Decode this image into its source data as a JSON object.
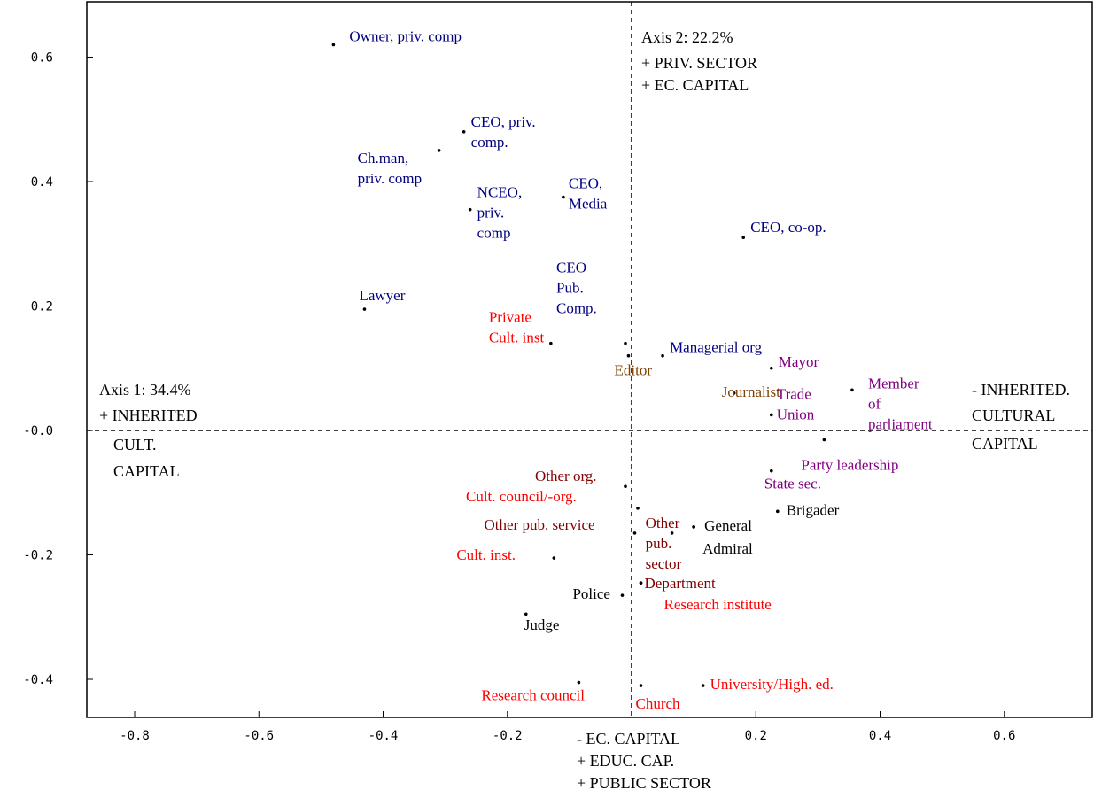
{
  "chart_data": {
    "type": "scatter",
    "xlim": [
      -0.88,
      0.75
    ],
    "ylim": [
      -0.46,
      0.67
    ],
    "x_ticks": [
      "-0.8",
      "-0.6",
      "-0.4",
      "-0.2",
      "0.2",
      "0.4",
      "0.6"
    ],
    "y_ticks": [
      "0.6",
      "0.4",
      "0.2",
      "-0.0",
      "-0.2",
      "-0.4"
    ],
    "axis_annotations": {
      "axis2_title": "Axis 2: 22.2%",
      "top_lines": [
        "+ PRIV. SECTOR",
        "+ EC. CAPITAL"
      ],
      "axis1_title": "Axis 1: 34.4%",
      "left_lines": [
        "+ INHERITED",
        "CULT.",
        "CAPITAL"
      ],
      "right_lines": [
        "- INHERITED.",
        "CULTURAL",
        "CAPITAL"
      ],
      "bottom_lines": [
        "- EC. CAPITAL",
        "+ EDUC. CAP.",
        "+ PUBLIC SECTOR"
      ]
    },
    "colors": {
      "private": "#000080",
      "culture": "#ff0000",
      "public": "#800000",
      "politics": "#800080",
      "media": "#804000",
      "state": "#000000"
    },
    "points": [
      {
        "label": [
          "Owner, priv. comp"
        ],
        "x": -0.48,
        "y": 0.62,
        "color": "#000080"
      },
      {
        "label": [
          "CEO, priv.",
          "comp."
        ],
        "x": -0.27,
        "y": 0.48,
        "color": "#000080"
      },
      {
        "label": [
          "Ch.man,",
          "priv. comp"
        ],
        "x": -0.31,
        "y": 0.45,
        "color": "#000080"
      },
      {
        "label": [
          "NCEO,",
          "priv.",
          "comp"
        ],
        "x": -0.26,
        "y": 0.355,
        "color": "#000080"
      },
      {
        "label": [
          "CEO,",
          "Media"
        ],
        "x": -0.11,
        "y": 0.375,
        "color": "#000080"
      },
      {
        "label": [
          "CEO, co-op."
        ],
        "x": 0.18,
        "y": 0.31,
        "color": "#000080"
      },
      {
        "label": [
          "Lawyer"
        ],
        "x": -0.43,
        "y": 0.195,
        "color": "#000080"
      },
      {
        "label": [
          "CEO",
          "Pub.",
          "Comp."
        ],
        "x": -0.01,
        "y": 0.14,
        "color": "#000080"
      },
      {
        "label": [
          "Managerial org"
        ],
        "x": 0.05,
        "y": 0.12,
        "color": "#000080"
      },
      {
        "label": [
          "Private",
          "Cult. inst"
        ],
        "x": -0.13,
        "y": 0.14,
        "color": "#ff0000"
      },
      {
        "label": [
          "Editor"
        ],
        "x": -0.005,
        "y": 0.12,
        "color": "#804000"
      },
      {
        "label": [
          "Journalist"
        ],
        "x": 0.165,
        "y": 0.06,
        "color": "#804000"
      },
      {
        "label": [
          "Mayor"
        ],
        "x": 0.225,
        "y": 0.1,
        "color": "#800080"
      },
      {
        "label": [
          "Trade",
          "Union"
        ],
        "x": 0.225,
        "y": 0.025,
        "color": "#800080"
      },
      {
        "label": [
          "Member",
          "of",
          "parliament"
        ],
        "x": 0.355,
        "y": 0.065,
        "color": "#800080"
      },
      {
        "label": [
          "Party leadership"
        ],
        "x": 0.31,
        "y": -0.015,
        "color": "#800080"
      },
      {
        "label": [
          "State sec."
        ],
        "x": 0.225,
        "y": -0.065,
        "color": "#800080"
      },
      {
        "label": [
          "Other org."
        ],
        "x": -0.01,
        "y": -0.09,
        "color": "#800000"
      },
      {
        "label": [
          "Cult. council/-org."
        ],
        "x": 0.01,
        "y": -0.125,
        "color": "#ff0000"
      },
      {
        "label": [
          "Other pub. service"
        ],
        "x": 0.005,
        "y": -0.165,
        "color": "#800000"
      },
      {
        "label": [
          "Other",
          "pub.",
          "sector"
        ],
        "x": 0.065,
        "y": -0.165,
        "color": "#800000"
      },
      {
        "label": [
          "General"
        ],
        "x": 0.1,
        "y": -0.155,
        "color": "#000000"
      },
      {
        "label": [
          "Brigader"
        ],
        "x": 0.235,
        "y": -0.13,
        "color": "#000000"
      },
      {
        "label": [
          "Admiral"
        ],
        "x": 0.1,
        "y": -0.155,
        "color": "#000000"
      },
      {
        "label": [
          "Cult. inst."
        ],
        "x": -0.125,
        "y": -0.205,
        "color": "#ff0000"
      },
      {
        "label": [
          "Department"
        ],
        "x": 0.015,
        "y": -0.245,
        "color": "#800000"
      },
      {
        "label": [
          "Research institute"
        ],
        "x": 0.015,
        "y": -0.245,
        "color": "#ff0000"
      },
      {
        "label": [
          "Police"
        ],
        "x": -0.015,
        "y": -0.265,
        "color": "#000000"
      },
      {
        "label": [
          "Judge"
        ],
        "x": -0.17,
        "y": -0.295,
        "color": "#000000"
      },
      {
        "label": [
          "Research council"
        ],
        "x": -0.085,
        "y": -0.405,
        "color": "#ff0000"
      },
      {
        "label": [
          "Church"
        ],
        "x": 0.015,
        "y": -0.41,
        "color": "#ff0000"
      },
      {
        "label": [
          "University/High. ed."
        ],
        "x": 0.115,
        "y": -0.41,
        "color": "#ff0000"
      }
    ]
  }
}
